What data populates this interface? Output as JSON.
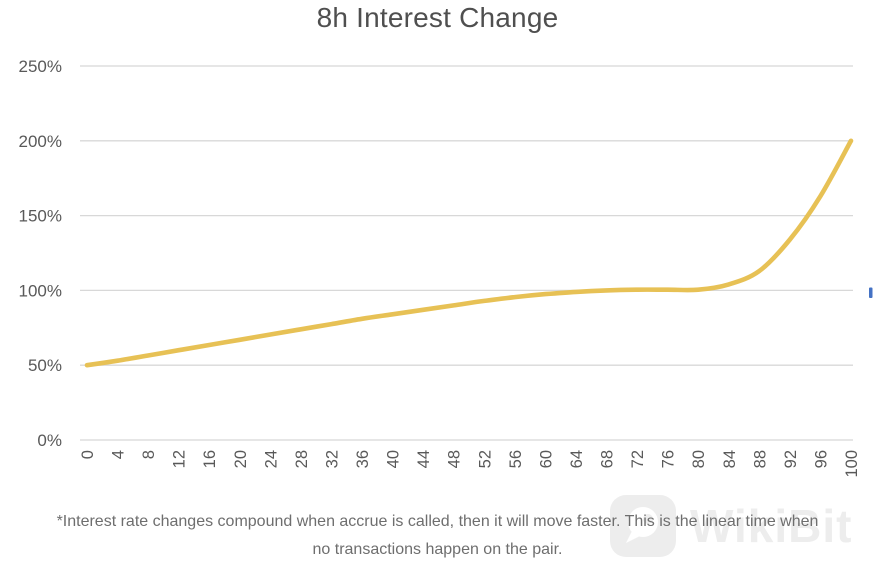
{
  "title": "8h Interest Change",
  "footnote": {
    "line1": "*Interest rate changes compound when accrue is called, then it will move faster. This is the linear time when",
    "line2": "no transactions happen on the pair."
  },
  "watermark": {
    "label": "WikiBit"
  },
  "colors": {
    "line": "#e7c155",
    "grid": "#d8d8d8",
    "axis_text": "#595959",
    "title_text": "#4f4f4f",
    "footnote_text": "#6e6e6e",
    "watermark": "#ededed",
    "blue_marker": "#4472c4",
    "background": "#ffffff"
  },
  "chart_data": {
    "type": "line",
    "title": "8h Interest Change",
    "x": [
      0,
      4,
      8,
      12,
      16,
      20,
      24,
      28,
      32,
      36,
      40,
      44,
      48,
      52,
      56,
      60,
      64,
      68,
      72,
      76,
      80,
      84,
      88,
      92,
      96,
      100
    ],
    "values": [
      50,
      53,
      56.5,
      60,
      63.5,
      67,
      70.5,
      74,
      77.5,
      81,
      84,
      87,
      90,
      93,
      95.5,
      97.5,
      99,
      100,
      100.5,
      100.5,
      100.5,
      104,
      113,
      134,
      163,
      200
    ],
    "x_tick_labels": [
      "0",
      "4",
      "8",
      "12",
      "16",
      "20",
      "24",
      "28",
      "32",
      "36",
      "40",
      "44",
      "48",
      "52",
      "56",
      "60",
      "64",
      "68",
      "72",
      "76",
      "80",
      "84",
      "88",
      "92",
      "96",
      "100"
    ],
    "y_ticks": [
      0,
      50,
      100,
      150,
      200,
      250
    ],
    "y_tick_labels": [
      "0%",
      "50%",
      "100%",
      "150%",
      "200%",
      "250%"
    ],
    "xlim": [
      0,
      100
    ],
    "ylim": [
      0,
      250
    ],
    "xlabel": "",
    "ylabel": "",
    "grid": "horizontal",
    "legend": "none",
    "x_tick_rotation": -90,
    "series_color": "#e7c155"
  }
}
